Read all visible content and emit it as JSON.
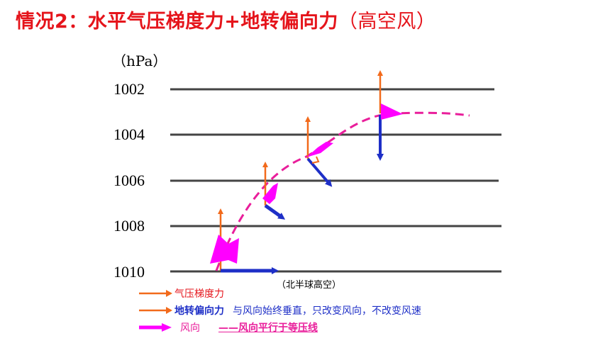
{
  "title": {
    "main": "情况2：水平气压梯度力+地转偏向力",
    "paren": "（高空风）"
  },
  "unit_label": "（hPa）",
  "isobars": [
    {
      "value": "1002"
    },
    {
      "value": "1004"
    },
    {
      "value": "1006"
    },
    {
      "value": "1008"
    },
    {
      "value": "1010"
    }
  ],
  "hemisphere_note": "（北半球高空）",
  "legend": {
    "pressure_force": "气压梯度力",
    "coriolis_force": "地转偏向力",
    "coriolis_note": "与风向始终垂直，只改变风向，不改变风速",
    "wind": "风向",
    "wind_note": "——风向平行于等压线"
  },
  "colors": {
    "title": "#e5141b",
    "pressure_arrow": "#f26a1b",
    "coriolis_arrow": "#1e2fc7",
    "wind_arrow": "#ff00ff",
    "wind_path": "#e91e9b",
    "isobar": "#444444"
  }
}
